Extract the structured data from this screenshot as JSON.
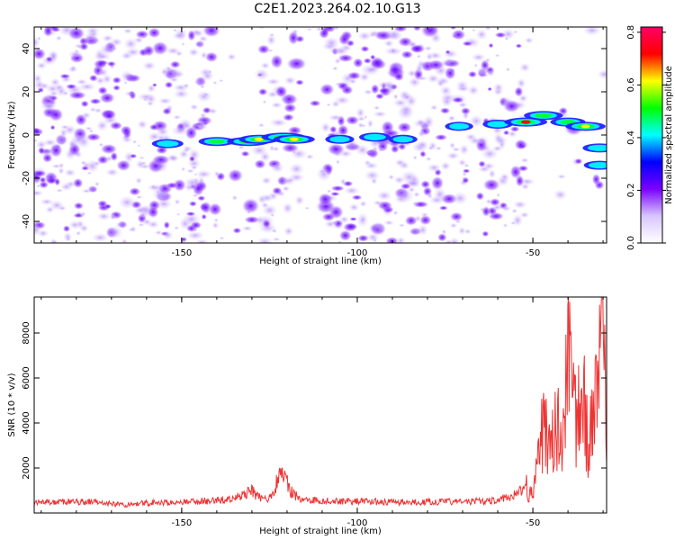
{
  "title": "C2E1.2023.264.02.10.G13",
  "colorbar": {
    "label": "Normalized spectral amplitude",
    "tick_labels": [
      "0.0",
      "0.2",
      "0.4",
      "0.6",
      "0.8"
    ],
    "range": [
      0,
      0.82
    ],
    "colormap": [
      "#ffffff",
      "#d8c6ff",
      "#7a00ff",
      "#0000ff",
      "#00ffff",
      "#00ff00",
      "#ffff00",
      "#ff0000",
      "#ff0066"
    ]
  },
  "chart_data": [
    {
      "type": "heatmap",
      "title": "",
      "xlabel": "Height of straight line (km)",
      "ylabel": "Frequency (Hz)",
      "xlim": [
        -192,
        -29
      ],
      "ylim": [
        -50,
        50
      ],
      "x_tick_labels": [
        "-150",
        "-100",
        "-50"
      ],
      "y_tick_labels": [
        "-40",
        "-20",
        "0",
        "20",
        "40"
      ],
      "signal_band": [
        {
          "x": -154,
          "y": -4,
          "amp": 0.25
        },
        {
          "x": -140,
          "y": -3,
          "amp": 0.45
        },
        {
          "x": -131,
          "y": -3,
          "amp": 0.7
        },
        {
          "x": -128,
          "y": -2,
          "amp": 0.6
        },
        {
          "x": -121,
          "y": -1,
          "amp": 0.75
        },
        {
          "x": -118,
          "y": -2,
          "amp": 0.65
        },
        {
          "x": -105,
          "y": -2,
          "amp": 0.15
        },
        {
          "x": -95,
          "y": -1,
          "amp": 0.25
        },
        {
          "x": -87,
          "y": -2,
          "amp": 0.15
        },
        {
          "x": -71,
          "y": 4,
          "amp": 0.12
        },
        {
          "x": -60,
          "y": 5,
          "amp": 0.2
        },
        {
          "x": -52,
          "y": 6,
          "amp": 0.7
        },
        {
          "x": -47,
          "y": 9,
          "amp": 0.55
        },
        {
          "x": -40,
          "y": 6,
          "amp": 0.4
        },
        {
          "x": -35,
          "y": 4,
          "amp": 0.6
        },
        {
          "x": -31,
          "y": -6,
          "amp": 0.35
        },
        {
          "x": -31,
          "y": -14,
          "amp": 0.25
        }
      ],
      "noise_gaps_x": [
        [
          -140,
          -128
        ],
        [
          -116,
          -110
        ],
        [
          -52,
          -29
        ]
      ]
    },
    {
      "type": "line",
      "title": "",
      "xlabel": "Height of straight line (km)",
      "ylabel": "SNR (10 * v/v)",
      "xlim": [
        -192,
        -29
      ],
      "ylim": [
        0,
        9600
      ],
      "x_tick_labels": [
        "-150",
        "-100",
        "-50"
      ],
      "y_tick_labels": [
        "2000",
        "4000",
        "6000",
        "8000"
      ],
      "color": "#ee3333",
      "series": [
        {
          "x": [
            -192,
            -185,
            -175,
            -165,
            -160,
            -150,
            -145,
            -140,
            -135,
            -132,
            -130,
            -128,
            -125,
            -121,
            -119,
            -116,
            -110,
            -100,
            -90,
            -80,
            -70,
            -60,
            -55,
            -52,
            -50,
            -49,
            -47,
            -45,
            -43,
            -41,
            -40,
            -38,
            -36,
            -34,
            -32,
            -30,
            -29
          ],
          "values": [
            450,
            500,
            480,
            350,
            450,
            480,
            520,
            560,
            600,
            900,
            1000,
            700,
            650,
            1950,
            950,
            600,
            550,
            520,
            480,
            500,
            500,
            550,
            800,
            1200,
            700,
            3000,
            3800,
            2500,
            4200,
            3500,
            8800,
            4000,
            5200,
            3200,
            4600,
            9000,
            2200
          ]
        }
      ]
    }
  ]
}
